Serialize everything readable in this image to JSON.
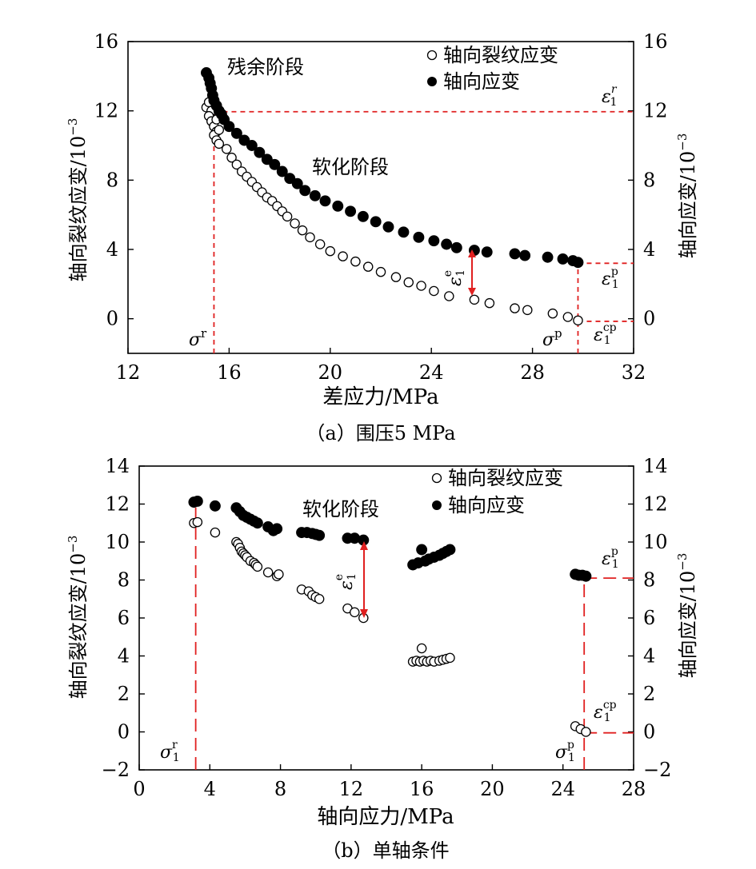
{
  "chart_data": [
    {
      "type": "scatter",
      "caption": "（a）围压5 MPa",
      "xlabel": "差应力/MPa",
      "ylabel_left": "轴向裂纹应变/10",
      "ylabel_right": "轴向应变/10",
      "ylabel_exponent": "−3",
      "xlim": [
        12,
        32
      ],
      "ylim": [
        -2,
        16
      ],
      "xticks": [
        "12",
        "16",
        "20",
        "24",
        "28",
        "32"
      ],
      "yticks": [
        "16",
        "12",
        "8",
        "4",
        "0"
      ],
      "yticks_right": [
        "16",
        "12",
        "8",
        "4",
        "0"
      ],
      "legend": [
        "轴向裂纹应变",
        "轴向应变"
      ],
      "legend_position": "top-right",
      "annotations": {
        "residual": "残余阶段",
        "softening": "软化阶段"
      },
      "symbols": {
        "sigma_r": "σ",
        "sigma_r_sup": "r",
        "sigma_p": "σ",
        "sigma_p_sup": "p",
        "eps": "ε",
        "sub1": "1",
        "r": "r",
        "p": "p",
        "cp": "cp",
        "e": "e"
      },
      "ref_lines": {
        "sigma_r": 15.4,
        "sigma_p": 29.8,
        "eps_r": 11.95,
        "eps_p": 3.2,
        "eps_cp": -0.15
      },
      "arrow": {
        "x": 25.9,
        "y_from": 1.1,
        "y_to": 3.8
      },
      "series": [
        {
          "name": "轴向裂纹应变",
          "marker": "open-circle",
          "x": [
            15.1,
            15.2,
            15.3,
            15.2,
            15.3,
            15.4,
            15.5,
            15.4,
            15.5,
            15.6,
            15.6,
            15.5,
            15.9,
            16.1,
            16.3,
            16.5,
            16.7,
            16.9,
            17.1,
            17.3,
            17.5,
            17.7,
            17.9,
            18.1,
            18.3,
            18.6,
            18.9,
            19.2,
            19.6,
            20.0,
            20.5,
            21.0,
            21.5,
            22.0,
            22.6,
            23.1,
            23.6,
            24.1,
            24.7,
            25.7,
            26.3,
            27.3,
            27.8,
            28.8,
            29.4,
            29.8
          ],
          "y": [
            12.2,
            12.5,
            12.0,
            11.7,
            11.4,
            11.1,
            10.8,
            10.6,
            10.3,
            10.1,
            10.9,
            11.5,
            9.8,
            9.3,
            8.9,
            8.5,
            8.2,
            7.9,
            7.6,
            7.3,
            7.0,
            6.8,
            6.5,
            6.2,
            5.9,
            5.5,
            5.1,
            4.7,
            4.3,
            3.9,
            3.6,
            3.3,
            3.0,
            2.7,
            2.4,
            2.1,
            1.9,
            1.6,
            1.3,
            1.1,
            0.9,
            0.6,
            0.5,
            0.3,
            0.1,
            -0.1
          ]
        },
        {
          "name": "轴向应变",
          "marker": "filled-circle",
          "x": [
            15.1,
            15.2,
            15.25,
            15.3,
            15.35,
            15.4,
            15.5,
            15.6,
            15.7,
            15.8,
            16.0,
            16.3,
            16.6,
            16.9,
            17.2,
            17.5,
            17.8,
            18.1,
            18.4,
            18.7,
            19.0,
            19.4,
            19.8,
            20.3,
            20.8,
            21.3,
            21.8,
            22.3,
            22.9,
            23.5,
            24.1,
            24.6,
            25.0,
            25.7,
            26.2,
            27.3,
            27.7,
            28.6,
            29.2,
            29.6,
            29.8
          ],
          "y": [
            14.2,
            13.9,
            13.6,
            13.3,
            12.9,
            12.6,
            12.3,
            12.0,
            11.8,
            11.5,
            11.1,
            10.7,
            10.3,
            10.0,
            9.6,
            9.2,
            8.9,
            8.5,
            8.1,
            7.8,
            7.4,
            7.1,
            6.8,
            6.5,
            6.2,
            5.9,
            5.6,
            5.3,
            5.0,
            4.7,
            4.5,
            4.3,
            4.1,
            3.95,
            3.85,
            3.75,
            3.65,
            3.55,
            3.45,
            3.35,
            3.25
          ]
        }
      ]
    },
    {
      "type": "scatter",
      "caption": "（b）单轴条件",
      "xlabel": "轴向应力/MPa",
      "ylabel_left": "轴向裂纹应变/10",
      "ylabel_right": "轴向应变/10",
      "ylabel_exponent": "−3",
      "xlim": [
        0,
        28
      ],
      "ylim": [
        -2,
        14
      ],
      "xticks": [
        "0",
        "4",
        "8",
        "12",
        "16",
        "20",
        "24",
        "28"
      ],
      "yticks": [
        "14",
        "12",
        "10",
        "8",
        "6",
        "4",
        "2",
        "0",
        "−2"
      ],
      "yticks_right": [
        "14",
        "12",
        "10",
        "8",
        "6",
        "4",
        "2",
        "0",
        "−2"
      ],
      "legend": [
        "轴向裂纹应变",
        "轴向应变"
      ],
      "legend_position": "top-right",
      "annotations": {
        "softening": "软化阶段"
      },
      "symbols": {
        "sigma": "σ",
        "sub1": "1",
        "r": "r",
        "p": "p",
        "cp": "cp",
        "e": "e",
        "eps": "ε"
      },
      "ref_lines": {
        "sigma_r": 3.2,
        "sigma_p": 25.2,
        "eps_p": 8.1,
        "eps_cp": -0.05
      },
      "arrow": {
        "x": 12.7,
        "y_from": 6.0,
        "y_to": 10.0
      },
      "series": [
        {
          "name": "轴向裂纹应变",
          "marker": "open-circle",
          "x": [
            3.1,
            3.3,
            4.3,
            5.5,
            5.6,
            5.7,
            5.8,
            5.9,
            6.0,
            6.1,
            6.3,
            6.5,
            6.6,
            6.7,
            7.3,
            7.8,
            7.9,
            9.2,
            9.6,
            9.8,
            10.0,
            10.2,
            11.8,
            12.2,
            12.7,
            15.5,
            15.7,
            15.9,
            16.0,
            16.1,
            16.3,
            16.5,
            16.7,
            17.0,
            17.2,
            17.4,
            17.6,
            24.7,
            25.0,
            25.3
          ],
          "y": [
            11.0,
            11.05,
            10.5,
            10.0,
            9.9,
            9.7,
            9.5,
            9.4,
            9.3,
            9.2,
            9.0,
            8.9,
            8.8,
            8.7,
            8.4,
            8.2,
            8.3,
            7.5,
            7.4,
            7.2,
            7.1,
            7.0,
            6.5,
            6.3,
            6.0,
            3.7,
            3.75,
            3.7,
            4.4,
            3.75,
            3.7,
            3.75,
            3.7,
            3.75,
            3.8,
            3.85,
            3.9,
            0.3,
            0.15,
            0.0
          ]
        },
        {
          "name": "轴向应变",
          "marker": "filled-circle",
          "x": [
            3.1,
            3.3,
            4.3,
            5.5,
            5.7,
            5.9,
            6.1,
            6.3,
            6.5,
            6.7,
            7.3,
            7.8,
            7.6,
            9.2,
            9.5,
            9.8,
            10.0,
            10.2,
            11.8,
            12.2,
            12.7,
            15.5,
            15.8,
            16.0,
            16.2,
            16.4,
            16.7,
            17.0,
            17.2,
            17.4,
            17.6,
            24.7,
            24.9,
            25.1,
            25.3
          ],
          "y": [
            12.1,
            12.15,
            11.9,
            11.8,
            11.6,
            11.4,
            11.3,
            11.2,
            11.1,
            11.0,
            10.8,
            10.7,
            10.6,
            10.5,
            10.5,
            10.45,
            10.4,
            10.35,
            10.2,
            10.2,
            10.1,
            8.8,
            8.9,
            9.6,
            9.0,
            9.1,
            9.2,
            9.3,
            9.4,
            9.5,
            9.6,
            8.3,
            8.25,
            8.25,
            8.2
          ]
        }
      ]
    }
  ]
}
